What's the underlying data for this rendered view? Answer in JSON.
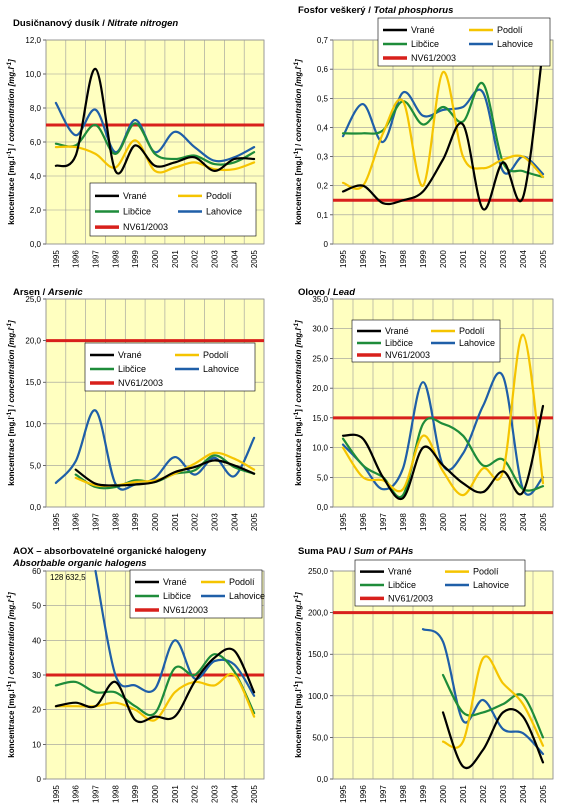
{
  "colors": {
    "plot_bg": "#FFFFC0",
    "Vrané": "#000000",
    "Podolí": "#F5C400",
    "Libčice": "#1E8C3A",
    "Lahovice": "#1F5FA8",
    "NV61/2003": "#D8201C"
  },
  "legend_labels": [
    "Vrané",
    "Podolí",
    "Libčice",
    "Lahovice",
    "NV61/2003"
  ],
  "ylabel_a": "koncentrace [mg.l",
  "ylabel_b": "] / ",
  "ylabel_c": "concentration [mg.l",
  "ylabel_d": "]",
  "superscript": "-1",
  "chart_data": [
    {
      "type": "line",
      "title": "Dusičnanový dusík / ",
      "title_italic": "Nitrate nitrogen",
      "ylim": [
        0,
        12
      ],
      "y_ticks": [
        "0,0",
        "2,0",
        "4,0",
        "6,0",
        "8,0",
        "10,0",
        "12,0"
      ],
      "y_tick_values": [
        0,
        2,
        4,
        6,
        8,
        10,
        12
      ],
      "x": [
        "1995",
        "1996",
        "1997",
        "1998",
        "1999",
        "2000",
        "2001",
        "2002",
        "2003",
        "2004",
        "2005"
      ],
      "legend_position": "bottom-center",
      "limit": 7.0,
      "series": [
        {
          "name": "Vrané",
          "values": [
            4.6,
            5.2,
            10.3,
            4.3,
            5.8,
            4.6,
            4.8,
            5.1,
            4.3,
            5.0,
            5.0
          ]
        },
        {
          "name": "Podolí",
          "values": [
            5.7,
            5.7,
            5.3,
            4.5,
            6.1,
            4.3,
            4.5,
            4.8,
            4.4,
            4.4,
            4.8
          ]
        },
        {
          "name": "Libčice",
          "values": [
            5.9,
            5.8,
            7.0,
            5.3,
            7.1,
            5.3,
            5.0,
            5.2,
            4.7,
            4.8,
            5.4
          ]
        },
        {
          "name": "Lahovice",
          "values": [
            8.3,
            6.4,
            7.9,
            5.4,
            7.3,
            5.4,
            6.6,
            5.7,
            4.9,
            5.1,
            5.7
          ]
        }
      ]
    },
    {
      "type": "line",
      "title": "Fosfor veškerý / ",
      "title_italic": "Total phosphorus",
      "ylim": [
        0,
        0.7
      ],
      "y_ticks": [
        "0",
        "0,1",
        "0,2",
        "0,3",
        "0,4",
        "0,5",
        "0,6",
        "0,7"
      ],
      "y_tick_values": [
        0,
        0.1,
        0.2,
        0.3,
        0.4,
        0.5,
        0.6,
        0.7
      ],
      "x": [
        "1995",
        "1996",
        "1997",
        "1998",
        "1999",
        "2000",
        "2001",
        "2002",
        "2003",
        "2004",
        "2005"
      ],
      "legend_position": "top-right",
      "limit": 0.15,
      "series": [
        {
          "name": "Vrané",
          "values": [
            0.18,
            0.2,
            0.14,
            0.15,
            0.18,
            0.29,
            0.41,
            0.12,
            0.28,
            0.16,
            0.67
          ]
        },
        {
          "name": "Podolí",
          "values": [
            0.21,
            0.2,
            0.38,
            0.49,
            0.2,
            0.59,
            0.3,
            0.26,
            0.29,
            0.3,
            0.23
          ]
        },
        {
          "name": "Libčice",
          "values": [
            0.38,
            0.38,
            0.39,
            0.49,
            0.41,
            0.47,
            0.42,
            0.55,
            0.28,
            0.25,
            0.23
          ]
        },
        {
          "name": "Lahovice",
          "values": [
            0.37,
            0.48,
            0.35,
            0.52,
            0.44,
            0.46,
            0.47,
            0.52,
            0.25,
            0.3,
            0.24
          ]
        }
      ]
    },
    {
      "type": "line",
      "title": "Arsen / ",
      "title_italic": "Arsenic",
      "ylim": [
        0,
        25
      ],
      "y_ticks": [
        "0,0",
        "5,0",
        "10,0",
        "15,0",
        "20,0",
        "25,0"
      ],
      "y_tick_values": [
        0,
        5,
        10,
        15,
        20,
        25
      ],
      "x": [
        "1995",
        "1996",
        "1997",
        "1998",
        "1999",
        "2000",
        "2001",
        "2002",
        "2003",
        "2004",
        "2005"
      ],
      "legend_position": "top-center",
      "limit": 20.0,
      "series": [
        {
          "name": "Vrané",
          "values": [
            null,
            4.5,
            2.8,
            2.6,
            2.7,
            3.0,
            4.2,
            4.8,
            5.6,
            5.0,
            4.0
          ]
        },
        {
          "name": "Podolí",
          "values": [
            null,
            3.5,
            2.6,
            2.6,
            3.0,
            3.2,
            4.0,
            5.2,
            6.5,
            5.8,
            4.5
          ]
        },
        {
          "name": "Libčice",
          "values": [
            null,
            3.9,
            2.4,
            2.4,
            3.2,
            3.0,
            4.0,
            4.4,
            6.2,
            4.8,
            4.0
          ]
        },
        {
          "name": "Lahovice",
          "values": [
            2.9,
            5.5,
            11.6,
            2.8,
            2.7,
            3.5,
            6.0,
            3.9,
            5.9,
            3.7,
            8.3
          ]
        }
      ]
    },
    {
      "type": "line",
      "title": "Olovo / ",
      "title_italic": "Lead",
      "ylim": [
        0,
        35
      ],
      "y_ticks": [
        "0,0",
        "5,0",
        "10,0",
        "15,0",
        "20,0",
        "25,0",
        "30,0",
        "35,0"
      ],
      "y_tick_values": [
        0,
        5,
        10,
        15,
        20,
        25,
        30,
        35
      ],
      "x": [
        "1995",
        "1996",
        "1997",
        "1998",
        "1999",
        "2000",
        "2001",
        "2002",
        "2003",
        "2004",
        "2005"
      ],
      "legend_position": "top-right",
      "limit": 15.0,
      "series": [
        {
          "name": "Vrané",
          "values": [
            12.0,
            11.5,
            5.0,
            1.5,
            10.0,
            7.0,
            4.0,
            2.5,
            6.0,
            2.5,
            17.0
          ]
        },
        {
          "name": "Podolí",
          "values": [
            10.0,
            5.0,
            4.5,
            3.0,
            12.0,
            6.0,
            2.0,
            6.5,
            6.0,
            29.0,
            4.0
          ]
        },
        {
          "name": "Libčice",
          "values": [
            11.5,
            7.0,
            5.0,
            2.0,
            14.0,
            14.0,
            12.0,
            7.0,
            8.0,
            3.0,
            3.5
          ]
        },
        {
          "name": "Lahovice",
          "values": [
            10.5,
            7.0,
            3.0,
            6.5,
            21.0,
            7.0,
            9.0,
            17.0,
            22.0,
            3.0,
            5.0
          ]
        }
      ]
    },
    {
      "type": "line",
      "title": "AOX – absorbovatelné organické halogeny",
      "title_italic": "Absorbable organic halogens",
      "annotation": "128  632,5",
      "ylim": [
        0,
        60
      ],
      "y_ticks": [
        "0",
        "10",
        "20",
        "30",
        "40",
        "50",
        "60"
      ],
      "y_tick_values": [
        0,
        10,
        20,
        30,
        40,
        50,
        60
      ],
      "x": [
        "1995",
        "1996",
        "1997",
        "1998",
        "1999",
        "2000",
        "2001",
        "2002",
        "2003",
        "2004",
        "2005"
      ],
      "legend_position": "top-right",
      "limit": 30.0,
      "series": [
        {
          "name": "Vrané",
          "values": [
            21.0,
            22.0,
            21.0,
            28.0,
            17.0,
            18.0,
            18.0,
            28.0,
            35.0,
            37.0,
            25.0
          ]
        },
        {
          "name": "Podolí",
          "values": [
            21.0,
            21.0,
            21.0,
            22.0,
            20.0,
            17.0,
            25.0,
            28.0,
            27.0,
            30.0,
            18.0
          ]
        },
        {
          "name": "Libčice",
          "values": [
            27.0,
            28.0,
            25.0,
            25.0,
            21.0,
            19.0,
            32.0,
            30.0,
            36.0,
            31.0,
            19.0
          ]
        },
        {
          "name": "Lahovice",
          "values": [
            null,
            null,
            60.0,
            30.0,
            27.0,
            26.0,
            40.0,
            29.0,
            34.0,
            33.0,
            24.0
          ]
        }
      ]
    },
    {
      "type": "line",
      "title": "Suma PAU / ",
      "title_italic": "Sum of PAHs",
      "ylim": [
        0,
        250
      ],
      "y_ticks": [
        "0,0",
        "50,0",
        "100,0",
        "150,0",
        "200,0",
        "250,0"
      ],
      "y_tick_values": [
        0,
        50,
        100,
        150,
        200,
        250
      ],
      "x": [
        "1995",
        "1996",
        "1997",
        "1998",
        "1999",
        "2000",
        "2001",
        "2002",
        "2003",
        "2004",
        "2005"
      ],
      "legend_position": "top-center",
      "limit": 200.0,
      "series": [
        {
          "name": "Vrané",
          "values": [
            null,
            null,
            null,
            null,
            null,
            80.0,
            15.0,
            35.0,
            80.0,
            75.0,
            20.0
          ]
        },
        {
          "name": "Podolí",
          "values": [
            null,
            null,
            null,
            null,
            null,
            45.0,
            45.0,
            145.0,
            115.0,
            90.0,
            40.0
          ]
        },
        {
          "name": "Libčice",
          "values": [
            null,
            null,
            null,
            null,
            null,
            125.0,
            80.0,
            80.0,
            90.0,
            100.0,
            50.0
          ]
        },
        {
          "name": "Lahovice",
          "values": [
            null,
            null,
            null,
            null,
            180.0,
            165.0,
            70.0,
            95.0,
            60.0,
            55.0,
            30.0
          ]
        }
      ]
    }
  ]
}
